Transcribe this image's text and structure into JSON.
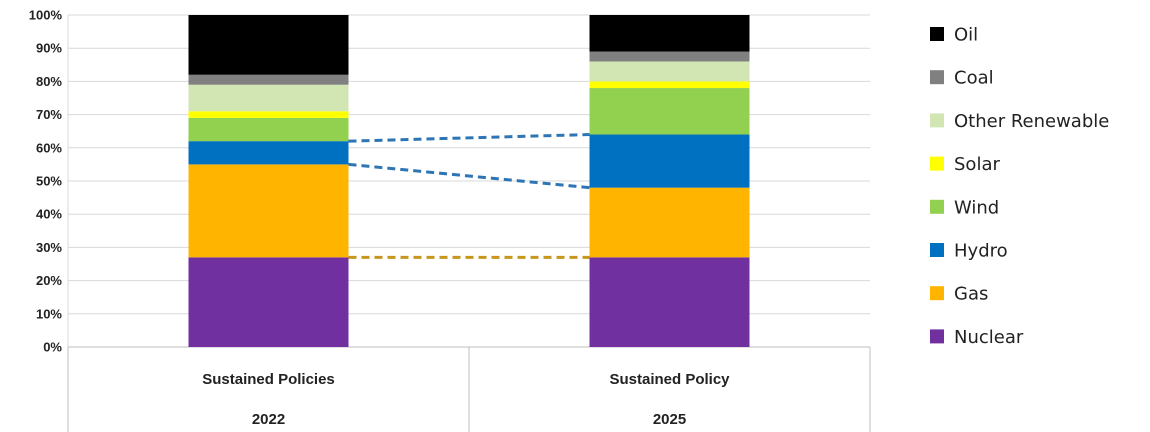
{
  "chart_data": {
    "type": "bar",
    "stacked": true,
    "title": "",
    "xlabel": "",
    "ylabel": "",
    "ylim": [
      0,
      100
    ],
    "yticks": [
      "0%",
      "10%",
      "20%",
      "30%",
      "40%",
      "50%",
      "60%",
      "70%",
      "80%",
      "90%",
      "100%"
    ],
    "grid": true,
    "legend_position": "right",
    "categories": [
      {
        "label": "Sustained Policies",
        "group": "2022"
      },
      {
        "label": "Sustained Policy",
        "group": "2025"
      }
    ],
    "series": [
      {
        "name": "Nuclear",
        "color": "#7030A0",
        "values": [
          27,
          27
        ]
      },
      {
        "name": "Gas",
        "color": "#FFB400",
        "values": [
          28,
          21
        ]
      },
      {
        "name": "Hydro",
        "color": "#0070C0",
        "values": [
          7,
          16
        ]
      },
      {
        "name": "Wind",
        "color": "#92D050",
        "values": [
          7,
          14
        ]
      },
      {
        "name": "Solar",
        "color": "#FFFF00",
        "values": [
          2,
          2
        ]
      },
      {
        "name": "Other Renewable",
        "color": "#D2E6B4",
        "values": [
          8,
          6
        ]
      },
      {
        "name": "Coal",
        "color": "#808080",
        "values": [
          3,
          3
        ]
      },
      {
        "name": "Oil",
        "color": "#000000",
        "values": [
          18,
          11
        ]
      }
    ],
    "connectors": [
      {
        "series": "Hydro",
        "edge": "top",
        "color": "#2E75B6"
      },
      {
        "series": "Gas",
        "edge": "top",
        "color": "#2E75B6"
      },
      {
        "series": "Nuclear",
        "edge": "top",
        "color": "#C8961E"
      }
    ]
  }
}
